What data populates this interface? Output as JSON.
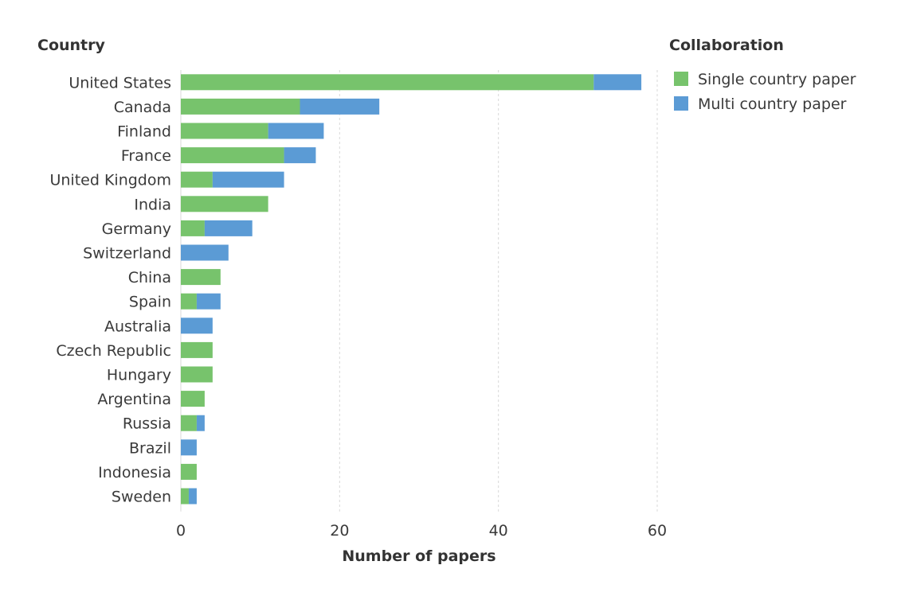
{
  "chart_data": {
    "type": "bar",
    "orientation": "horizontal",
    "stacked": true,
    "y_axis_title": "Country",
    "x_axis_title": "Number of papers",
    "legend_title": "Collaboration",
    "legend_position": "right",
    "xlim": [
      0,
      60
    ],
    "x_ticks": [
      "0",
      "20",
      "40",
      "60"
    ],
    "grid": true,
    "categories": [
      "United States",
      "Canada",
      "Finland",
      "France",
      "United Kingdom",
      "India",
      "Germany",
      "Switzerland",
      "China",
      "Spain",
      "Australia",
      "Czech Republic",
      "Hungary",
      "Argentina",
      "Russia",
      "Brazil",
      "Indonesia",
      "Sweden"
    ],
    "series": [
      {
        "name": "Single country paper",
        "color": "#77c36c",
        "values": [
          52,
          15,
          11,
          13,
          4,
          11,
          3,
          0,
          5,
          2,
          0,
          4,
          4,
          3,
          2,
          0,
          2,
          1
        ]
      },
      {
        "name": "Multi country paper",
        "color": "#5b9bd5",
        "values": [
          6,
          10,
          7,
          4,
          9,
          0,
          6,
          6,
          0,
          3,
          4,
          0,
          0,
          0,
          1,
          2,
          0,
          1
        ]
      }
    ]
  }
}
